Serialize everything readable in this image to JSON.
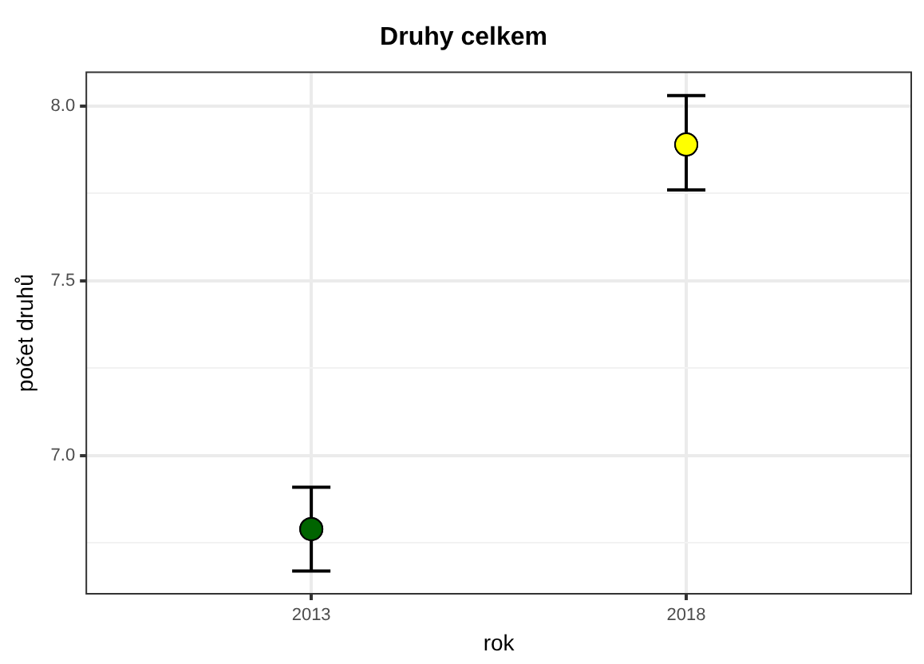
{
  "chart_data": {
    "type": "scatter",
    "title": "Druhy celkem",
    "xlabel": "rok",
    "ylabel": "počet druhů",
    "categories": [
      "2013",
      "2018"
    ],
    "values": [
      6.79,
      7.89
    ],
    "errors": [
      [
        6.67,
        6.91
      ],
      [
        7.76,
        8.03
      ]
    ],
    "colors": [
      "#006400",
      "#ffff00"
    ],
    "marker": "circle",
    "ylim": [
      6.605,
      8.097
    ],
    "yticks": [
      {
        "value": 6.75,
        "label": null
      },
      {
        "value": 7,
        "label": "7.0"
      },
      {
        "value": 7.25,
        "label": null
      },
      7.5,
      {
        "value": 7.75,
        "label": null
      },
      {
        "value": 8,
        "label": "8.0"
      }
    ],
    "grid": true
  }
}
